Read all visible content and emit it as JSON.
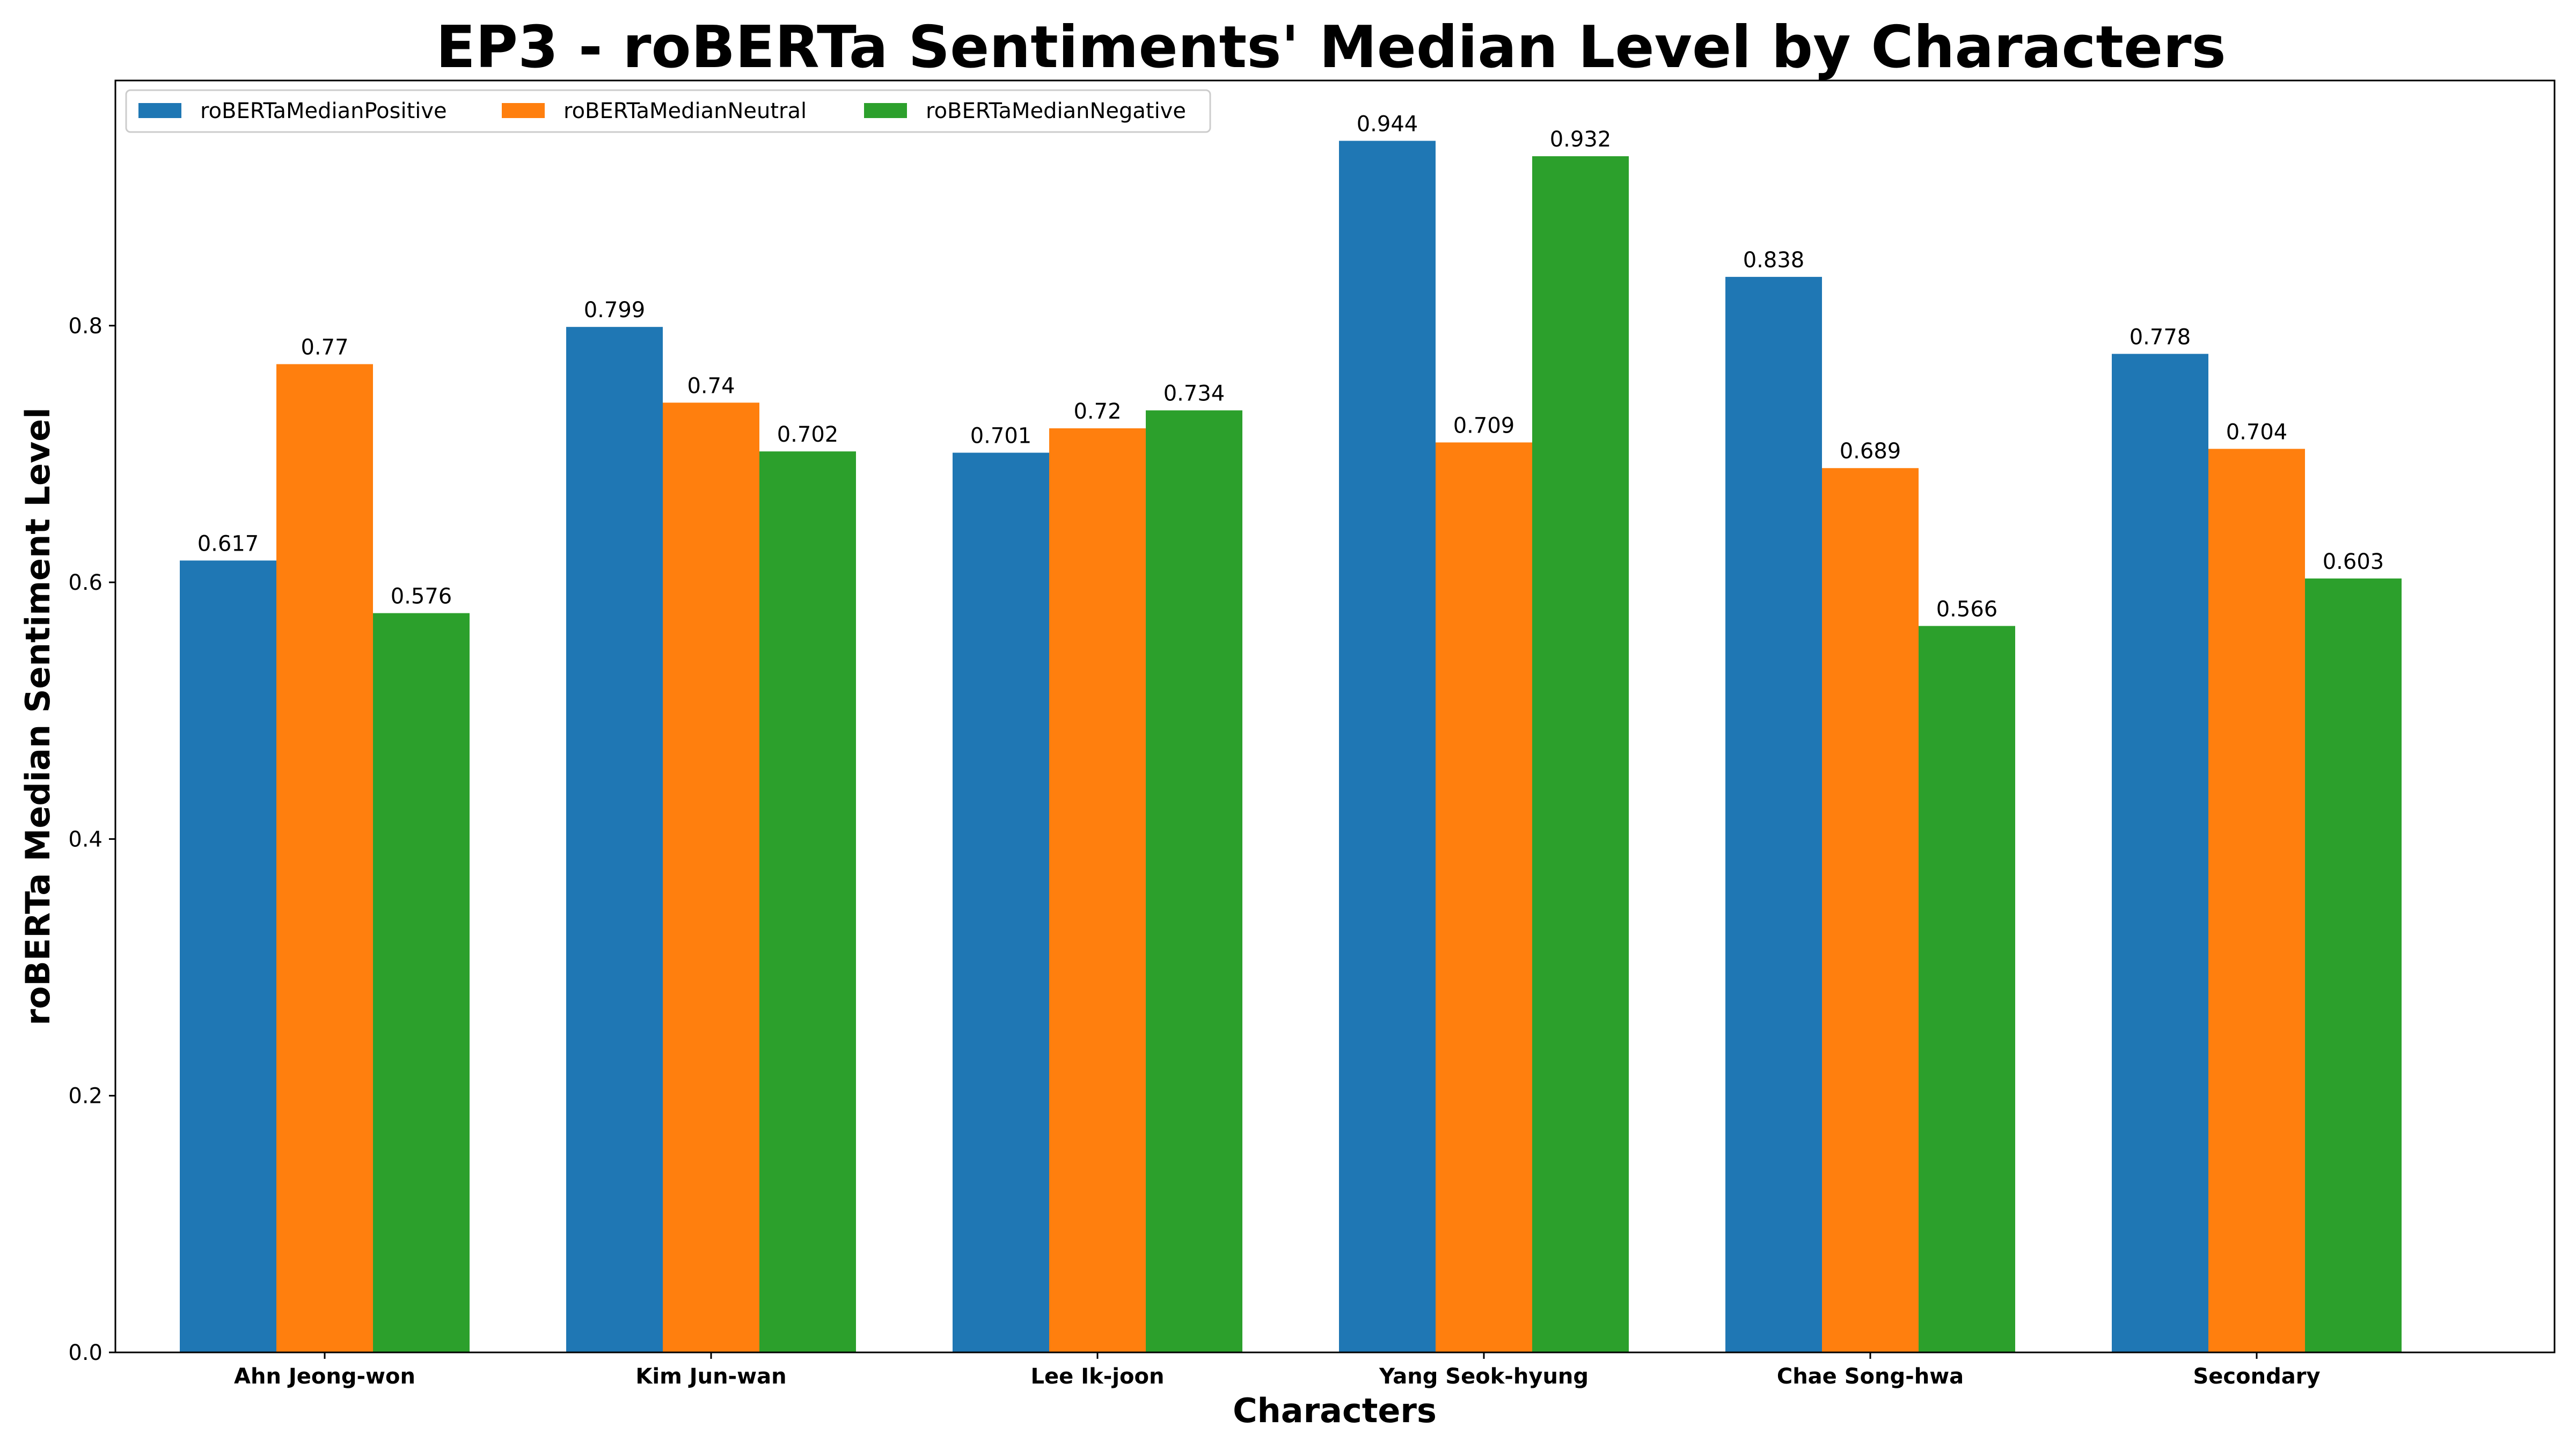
{
  "chart_data": {
    "type": "bar",
    "title": "EP3 - roBERTa Sentiments' Median Level by Characters",
    "xlabel": "Characters",
    "ylabel": "roBERTa Median Sentiment Level",
    "categories": [
      "Ahn Jeong-won",
      "Kim Jun-wan",
      "Lee Ik-joon",
      "Yang Seok-hyung",
      "Chae Song-hwa",
      "Secondary"
    ],
    "series": [
      {
        "name": "roBERTaMedianPositive",
        "color": "#1f77b4",
        "values": [
          0.617,
          0.799,
          0.701,
          0.944,
          0.838,
          0.778
        ],
        "labels": [
          "0.617",
          "0.799",
          "0.701",
          "0.944",
          "0.838",
          "0.778"
        ]
      },
      {
        "name": "roBERTaMedianNeutral",
        "color": "#ff7f0e",
        "values": [
          0.77,
          0.74,
          0.72,
          0.709,
          0.689,
          0.704
        ],
        "labels": [
          "0.77",
          "0.74",
          "0.72",
          "0.709",
          "0.689",
          "0.704"
        ]
      },
      {
        "name": "roBERTaMedianNegative",
        "color": "#2ca02c",
        "values": [
          0.576,
          0.702,
          0.734,
          0.932,
          0.566,
          0.603
        ],
        "labels": [
          "0.576",
          "0.702",
          "0.734",
          "0.932",
          "0.566",
          "0.603"
        ]
      }
    ],
    "yticks": [
      "0.0",
      "0.2",
      "0.4",
      "0.6",
      "0.8"
    ],
    "ylim": [
      0,
      0.991
    ],
    "grid": false,
    "legend": {
      "placement": "top-left",
      "columns": 3
    }
  }
}
